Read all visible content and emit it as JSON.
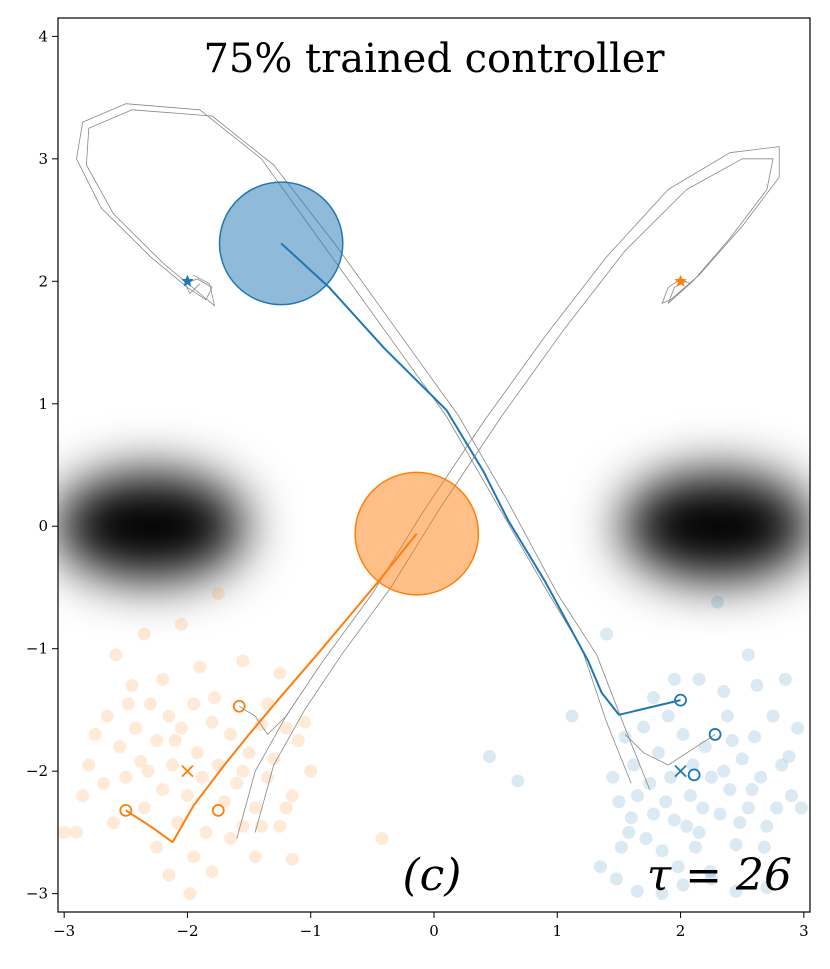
{
  "chart_data": {
    "type": "scatter",
    "title": "75% trained controller",
    "xlabel": "",
    "ylabel": "",
    "xlim": [
      -3.05,
      3.05
    ],
    "ylim": [
      -3.15,
      4.15
    ],
    "x_ticks": [
      -3,
      -2,
      -1,
      0,
      1,
      2,
      3
    ],
    "x_tick_labels": [
      "−3",
      "−2",
      "−1",
      "0",
      "1",
      "2",
      "3"
    ],
    "y_ticks": [
      -3,
      -2,
      -1,
      0,
      1,
      2,
      3,
      4
    ],
    "y_tick_labels": [
      "−3",
      "−2",
      "−1",
      "0",
      "1",
      "2",
      "3",
      "4"
    ],
    "annotations": {
      "panel_label": "(c)",
      "time_label": "τ = 26"
    },
    "colors": {
      "blue": "#1f77b4",
      "orange": "#ff7f0e",
      "gray": "#888888"
    },
    "obstacles": [
      {
        "name": "left-obstacle",
        "center": [
          -2.3,
          0.0
        ],
        "spread": [
          0.55,
          0.35
        ]
      },
      {
        "name": "right-obstacle",
        "center": [
          2.3,
          0.0
        ],
        "spread": [
          0.55,
          0.35
        ]
      }
    ],
    "agents": [
      {
        "name": "blue",
        "goal": [
          -2.0,
          2.0
        ],
        "start_mean": [
          2.0,
          -2.0
        ],
        "body_center": [
          -1.24,
          2.31
        ],
        "body_radius": 0.5,
        "trajectory": [
          [
            2.0,
            -1.42
          ],
          [
            1.5,
            -1.54
          ],
          [
            1.36,
            -1.36
          ],
          [
            1.25,
            -1.1
          ],
          [
            0.9,
            -0.45
          ],
          [
            0.6,
            0.05
          ],
          [
            0.4,
            0.45
          ],
          [
            0.1,
            0.95
          ],
          [
            -0.4,
            1.45
          ],
          [
            -0.85,
            1.95
          ],
          [
            -1.24,
            2.31
          ]
        ],
        "start_samples": [
          [
            2.0,
            -1.42
          ],
          [
            2.28,
            -1.7
          ],
          [
            2.11,
            -2.03
          ]
        ],
        "scatter": [
          [
            1.4,
            -0.88
          ],
          [
            1.55,
            -1.72
          ],
          [
            1.62,
            -1.95
          ],
          [
            1.7,
            -1.64
          ],
          [
            1.75,
            -2.1
          ],
          [
            1.82,
            -1.85
          ],
          [
            1.88,
            -2.25
          ],
          [
            1.9,
            -1.55
          ],
          [
            1.95,
            -2.4
          ],
          [
            2.02,
            -1.7
          ],
          [
            2.08,
            -2.2
          ],
          [
            2.1,
            -1.95
          ],
          [
            2.15,
            -2.5
          ],
          [
            2.2,
            -1.8
          ],
          [
            2.25,
            -2.05
          ],
          [
            2.3,
            -0.62
          ],
          [
            2.32,
            -2.35
          ],
          [
            2.38,
            -1.55
          ],
          [
            2.4,
            -2.15
          ],
          [
            2.45,
            -2.6
          ],
          [
            2.5,
            -1.9
          ],
          [
            2.55,
            -2.3
          ],
          [
            2.6,
            -1.72
          ],
          [
            2.65,
            -2.05
          ],
          [
            2.7,
            -2.45
          ],
          [
            2.75,
            -1.55
          ],
          [
            2.82,
            -1.95
          ],
          [
            2.9,
            -2.2
          ],
          [
            2.95,
            -1.65
          ],
          [
            1.5,
            -2.25
          ],
          [
            1.58,
            -2.5
          ],
          [
            1.65,
            -2.2
          ],
          [
            1.72,
            -2.55
          ],
          [
            1.78,
            -2.35
          ],
          [
            1.85,
            -2.65
          ],
          [
            1.92,
            -2.05
          ],
          [
            1.98,
            -2.78
          ],
          [
            2.05,
            -2.45
          ],
          [
            2.12,
            -2.62
          ],
          [
            2.18,
            -2.3
          ],
          [
            2.24,
            -2.82
          ],
          [
            2.35,
            -2.0
          ],
          [
            2.42,
            -1.75
          ],
          [
            2.48,
            -2.42
          ],
          [
            2.58,
            -2.15
          ],
          [
            2.68,
            -2.62
          ],
          [
            2.78,
            -2.3
          ],
          [
            2.88,
            -1.88
          ],
          [
            1.45,
            -2.05
          ],
          [
            1.52,
            -2.62
          ],
          [
            1.6,
            -2.38
          ],
          [
            0.45,
            -1.88
          ],
          [
            0.68,
            -2.08
          ],
          [
            1.12,
            -1.55
          ],
          [
            1.35,
            -2.78
          ],
          [
            1.48,
            -2.88
          ],
          [
            1.65,
            -2.98
          ],
          [
            1.85,
            -3.0
          ],
          [
            2.02,
            -2.93
          ],
          [
            2.25,
            -2.88
          ],
          [
            2.45,
            -2.98
          ],
          [
            2.7,
            -2.95
          ],
          [
            2.98,
            -2.3
          ],
          [
            2.15,
            -1.25
          ],
          [
            2.35,
            -1.35
          ],
          [
            2.62,
            -1.3
          ],
          [
            1.78,
            -1.4
          ],
          [
            1.95,
            -1.25
          ],
          [
            2.55,
            -1.05
          ],
          [
            2.85,
            -1.25
          ]
        ]
      },
      {
        "name": "orange",
        "goal": [
          2.0,
          2.0
        ],
        "start_mean": [
          -2.0,
          -2.0
        ],
        "body_center": [
          -0.14,
          -0.06
        ],
        "body_radius": 0.5,
        "trajectory": [
          [
            -2.5,
            -2.32
          ],
          [
            -2.3,
            -2.45
          ],
          [
            -2.12,
            -2.58
          ],
          [
            -1.95,
            -2.28
          ],
          [
            -1.7,
            -1.95
          ],
          [
            -1.5,
            -1.7
          ],
          [
            -1.25,
            -1.4
          ],
          [
            -0.95,
            -1.05
          ],
          [
            -0.7,
            -0.75
          ],
          [
            -0.45,
            -0.45
          ],
          [
            -0.14,
            -0.06
          ]
        ],
        "start_samples": [
          [
            -2.5,
            -2.32
          ],
          [
            -1.58,
            -1.47
          ],
          [
            -1.75,
            -2.32
          ]
        ],
        "scatter": [
          [
            -2.65,
            -1.55
          ],
          [
            -2.55,
            -1.8
          ],
          [
            -2.5,
            -2.05
          ],
          [
            -2.42,
            -1.65
          ],
          [
            -2.38,
            -1.92
          ],
          [
            -2.35,
            -2.3
          ],
          [
            -2.3,
            -1.45
          ],
          [
            -2.25,
            -1.75
          ],
          [
            -2.2,
            -2.15
          ],
          [
            -2.15,
            -1.55
          ],
          [
            -2.12,
            -1.95
          ],
          [
            -2.08,
            -2.42
          ],
          [
            -2.05,
            -1.65
          ],
          [
            -2.0,
            -2.2
          ],
          [
            -1.95,
            -1.45
          ],
          [
            -1.92,
            -1.85
          ],
          [
            -1.88,
            -2.05
          ],
          [
            -1.85,
            -2.5
          ],
          [
            -1.8,
            -1.6
          ],
          [
            -1.75,
            -1.95
          ],
          [
            -1.7,
            -2.25
          ],
          [
            -1.65,
            -1.7
          ],
          [
            -1.6,
            -2.1
          ],
          [
            -1.55,
            -2.45
          ],
          [
            -1.5,
            -1.85
          ],
          [
            -1.45,
            -2.3
          ],
          [
            -1.4,
            -1.62
          ],
          [
            -1.35,
            -2.05
          ],
          [
            -1.3,
            -1.9
          ],
          [
            -1.25,
            -2.45
          ],
          [
            -1.2,
            -1.65
          ],
          [
            -1.15,
            -2.2
          ],
          [
            -1.1,
            -1.75
          ],
          [
            -1.05,
            -1.6
          ],
          [
            -2.75,
            -1.7
          ],
          [
            -2.8,
            -1.95
          ],
          [
            -2.85,
            -2.2
          ],
          [
            -2.9,
            -2.5
          ],
          [
            -3.0,
            -2.5
          ],
          [
            -2.45,
            -1.3
          ],
          [
            -2.2,
            -1.25
          ],
          [
            -1.9,
            -1.15
          ],
          [
            -2.05,
            -0.8
          ],
          [
            -2.35,
            -0.88
          ],
          [
            -1.55,
            -1.1
          ],
          [
            -1.25,
            -1.2
          ],
          [
            -2.6,
            -2.42
          ],
          [
            -2.25,
            -2.62
          ],
          [
            -1.95,
            -2.7
          ],
          [
            -1.8,
            -2.82
          ],
          [
            -1.65,
            -2.55
          ],
          [
            -1.45,
            -2.7
          ],
          [
            -1.15,
            -2.72
          ],
          [
            -0.42,
            -2.55
          ],
          [
            -1.75,
            -0.55
          ],
          [
            -2.58,
            -1.05
          ],
          [
            -2.15,
            -2.85
          ],
          [
            -1.98,
            -3.0
          ],
          [
            -1.35,
            -1.45
          ],
          [
            -1.0,
            -2.0
          ],
          [
            -2.32,
            -2.0
          ],
          [
            -2.48,
            -1.45
          ],
          [
            -2.1,
            -1.75
          ],
          [
            -1.78,
            -1.4
          ],
          [
            -1.55,
            -2.0
          ],
          [
            -1.4,
            -2.45
          ],
          [
            -1.2,
            -2.3
          ],
          [
            -2.68,
            -2.1
          ]
        ]
      }
    ],
    "reference_paths": [
      [
        [
          1.6,
          -2.1
        ],
        [
          1.4,
          -1.6
        ],
        [
          1.2,
          -1.0
        ],
        [
          0.9,
          -0.5
        ],
        [
          0.5,
          0.2
        ],
        [
          0.1,
          0.9
        ],
        [
          -0.4,
          1.6
        ],
        [
          -0.9,
          2.3
        ],
        [
          -1.4,
          3.0
        ],
        [
          -1.9,
          3.4
        ],
        [
          -2.5,
          3.45
        ],
        [
          -2.85,
          3.3
        ],
        [
          -2.9,
          3.0
        ],
        [
          -2.7,
          2.6
        ],
        [
          -2.3,
          2.2
        ],
        [
          -2.0,
          1.95
        ],
        [
          -1.85,
          1.85
        ],
        [
          -1.8,
          1.95
        ],
        [
          -1.92,
          2.02
        ],
        [
          -2.02,
          1.98
        ],
        [
          -1.98,
          1.9
        ],
        [
          -1.9,
          1.98
        ]
      ],
      [
        [
          1.75,
          -2.15
        ],
        [
          1.55,
          -1.65
        ],
        [
          1.32,
          -1.05
        ],
        [
          1.0,
          -0.55
        ],
        [
          0.6,
          0.2
        ],
        [
          0.2,
          0.9
        ],
        [
          -0.3,
          1.6
        ],
        [
          -0.8,
          2.3
        ],
        [
          -1.3,
          2.95
        ],
        [
          -1.8,
          3.35
        ],
        [
          -2.45,
          3.4
        ],
        [
          -2.8,
          3.25
        ],
        [
          -2.82,
          2.95
        ],
        [
          -2.6,
          2.55
        ],
        [
          -2.2,
          2.15
        ],
        [
          -1.9,
          1.9
        ],
        [
          -1.78,
          1.8
        ],
        [
          -1.82,
          1.98
        ],
        [
          -1.95,
          2.05
        ]
      ],
      [
        [
          -1.6,
          -2.55
        ],
        [
          -1.45,
          -2.0
        ],
        [
          -1.2,
          -1.55
        ],
        [
          -0.9,
          -1.1
        ],
        [
          -0.5,
          -0.55
        ],
        [
          -0.1,
          0.1
        ],
        [
          0.4,
          0.85
        ],
        [
          0.9,
          1.55
        ],
        [
          1.4,
          2.2
        ],
        [
          1.9,
          2.75
        ],
        [
          2.4,
          3.05
        ],
        [
          2.8,
          3.1
        ],
        [
          2.8,
          2.85
        ],
        [
          2.5,
          2.45
        ],
        [
          2.15,
          2.05
        ],
        [
          1.92,
          1.85
        ],
        [
          1.85,
          1.82
        ],
        [
          1.9,
          1.95
        ],
        [
          2.0,
          2.02
        ],
        [
          2.08,
          1.98
        ]
      ],
      [
        [
          -1.45,
          -2.5
        ],
        [
          -1.3,
          -1.95
        ],
        [
          -1.05,
          -1.5
        ],
        [
          -0.75,
          -1.05
        ],
        [
          -0.35,
          -0.5
        ],
        [
          0.05,
          0.15
        ],
        [
          0.55,
          0.9
        ],
        [
          1.05,
          1.6
        ],
        [
          1.55,
          2.25
        ],
        [
          2.05,
          2.75
        ],
        [
          2.5,
          3.0
        ],
        [
          2.75,
          3.0
        ],
        [
          2.7,
          2.75
        ],
        [
          2.4,
          2.35
        ],
        [
          2.1,
          2.0
        ],
        [
          1.9,
          1.82
        ],
        [
          1.95,
          1.95
        ],
        [
          2.05,
          2.0
        ]
      ],
      [
        [
          -1.58,
          -1.47
        ],
        [
          -1.45,
          -1.55
        ],
        [
          -1.35,
          -1.7
        ],
        [
          -1.2,
          -1.55
        ],
        [
          -1.1,
          -1.4
        ]
      ],
      [
        [
          1.55,
          -1.7
        ],
        [
          1.7,
          -1.85
        ],
        [
          1.9,
          -1.95
        ],
        [
          2.28,
          -1.7
        ]
      ]
    ]
  }
}
